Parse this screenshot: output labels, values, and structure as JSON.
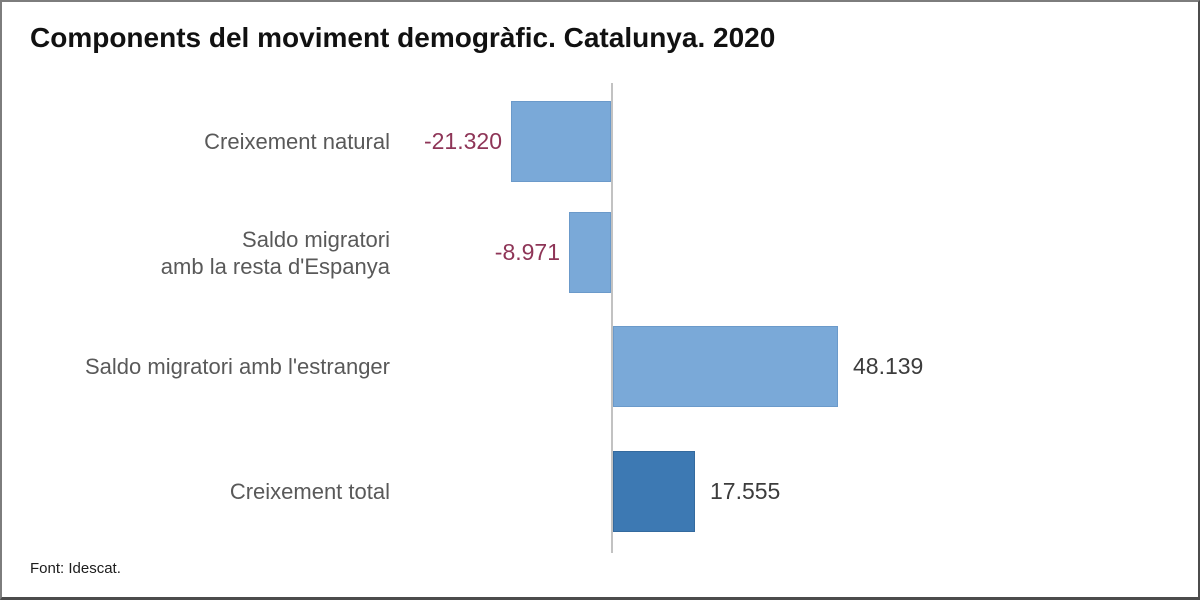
{
  "chart_data": {
    "type": "bar",
    "orientation": "horizontal",
    "title": "Components del moviment demogràfic. Catalunya. 2020",
    "source_note": "Font: Idescat.",
    "grid": false,
    "value_axis_visible": false,
    "zero_line_visible": true,
    "categories": [
      "Creixement natural",
      "Saldo migratori amb la resta d'Espanya",
      "Saldo migratori amb l'estranger",
      "Creixement total"
    ],
    "values": [
      -21320,
      -8971,
      48139,
      17555
    ],
    "value_labels": [
      "-21.320",
      "-8.971",
      "48.139",
      "17.555"
    ],
    "bars": [
      {
        "id": "creixement-natural",
        "label_lines": [
          "Creixement natural"
        ],
        "value": -21320,
        "value_label": "-21.320",
        "bar_color": "#7AA9D8",
        "bar_border_color": "#6B9ACA",
        "value_color": "#8E3557"
      },
      {
        "id": "saldo-migratori-espanya",
        "label_lines": [
          "Saldo migratori",
          "amb la resta d'Espanya"
        ],
        "value": -8971,
        "value_label": "-8.971",
        "bar_color": "#7AA9D8",
        "bar_border_color": "#6B9ACA",
        "value_color": "#8E3557"
      },
      {
        "id": "saldo-migratori-estranger",
        "label_lines": [
          "Saldo migratori amb l'estranger"
        ],
        "value": 48139,
        "value_label": "48.139",
        "bar_color": "#7AA9D8",
        "bar_border_color": "#6B9ACA",
        "value_color": "#3C3C3C"
      },
      {
        "id": "creixement-total",
        "label_lines": [
          "Creixement total"
        ],
        "value": 17555,
        "value_label": "17.555",
        "bar_color": "#3D79B3",
        "bar_border_color": "#346A9E",
        "value_color": "#3C3C3C"
      }
    ],
    "colors": {
      "bar_light_blue": "#7AA9D8",
      "bar_dark_blue": "#3D79B3",
      "negative_value_text": "#8E3557",
      "positive_value_text": "#3C3C3C",
      "category_text": "#595959",
      "axis_line": "#C2C2C2",
      "title_text": "#111111",
      "background": "#FFFFFF"
    }
  }
}
